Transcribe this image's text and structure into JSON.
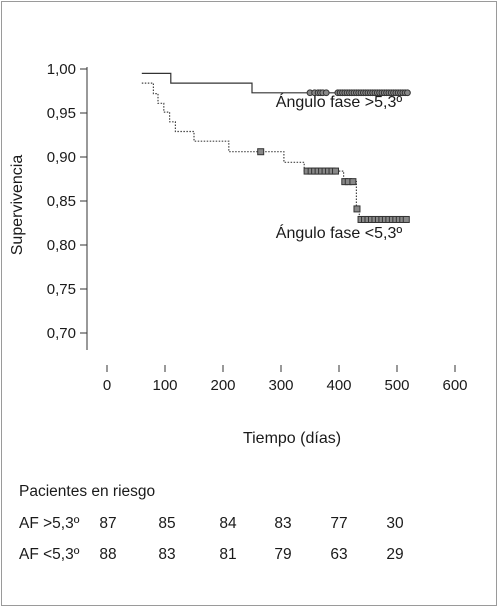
{
  "chart_data": {
    "type": "line",
    "title": "",
    "xlabel": "Tiempo (días)",
    "ylabel": "Supervivencia",
    "xlim": [
      0,
      600
    ],
    "ylim": [
      0.7,
      1.0
    ],
    "x_ticks": [
      0,
      100,
      200,
      300,
      400,
      500,
      600
    ],
    "y_ticks": [
      1.0,
      0.95,
      0.9,
      0.85,
      0.8,
      0.75,
      0.7
    ],
    "x_tick_labels": [
      "0",
      "100",
      "200",
      "300",
      "400",
      "500",
      "600"
    ],
    "y_tick_labels": [
      "1,00",
      "0,95",
      "0,90",
      "0,85",
      "0,80",
      "0,75",
      "0,70"
    ],
    "grid": false,
    "series": [
      {
        "name": "Ángulo fase >5,3º",
        "style": "solid",
        "color": "#333333",
        "steps": [
          [
            60,
            0.995
          ],
          [
            110,
            0.995
          ],
          [
            110,
            0.984
          ],
          [
            250,
            0.984
          ],
          [
            250,
            0.973
          ],
          [
            520,
            0.973
          ]
        ],
        "censored": [
          350,
          358,
          364,
          368,
          372,
          378,
          398,
          402,
          406,
          410,
          414,
          418,
          422,
          426,
          430,
          434,
          438,
          442,
          446,
          450,
          454,
          458,
          462,
          466,
          470,
          474,
          478,
          482,
          486,
          490,
          494,
          498,
          502,
          506,
          510,
          514,
          518
        ]
      },
      {
        "name": "Ángulo fase <5,3º",
        "style": "dotted",
        "color": "#444444",
        "steps": [
          [
            60,
            0.984
          ],
          [
            80,
            0.984
          ],
          [
            80,
            0.972
          ],
          [
            88,
            0.972
          ],
          [
            88,
            0.961
          ],
          [
            98,
            0.961
          ],
          [
            98,
            0.951
          ],
          [
            108,
            0.951
          ],
          [
            108,
            0.94
          ],
          [
            118,
            0.94
          ],
          [
            118,
            0.929
          ],
          [
            150,
            0.929
          ],
          [
            150,
            0.918
          ],
          [
            210,
            0.918
          ],
          [
            210,
            0.906
          ],
          [
            305,
            0.906
          ],
          [
            305,
            0.894
          ],
          [
            340,
            0.894
          ],
          [
            340,
            0.884
          ],
          [
            408,
            0.884
          ],
          [
            408,
            0.872
          ],
          [
            430,
            0.872
          ],
          [
            430,
            0.841
          ],
          [
            435,
            0.841
          ],
          [
            435,
            0.829
          ],
          [
            520,
            0.829
          ]
        ],
        "censored": [
          265,
          345,
          352,
          358,
          364,
          370,
          376,
          382,
          388,
          394,
          410,
          416,
          424,
          431,
          438,
          444,
          450,
          456,
          462,
          468,
          474,
          480,
          486,
          492,
          498,
          504,
          510,
          516
        ]
      }
    ],
    "annotations": [
      {
        "text": "Ángulo fase >5,3º",
        "x": 400,
        "y": 0.957
      },
      {
        "text": "Ángulo fase <5,3º",
        "x": 400,
        "y": 0.808
      }
    ],
    "risk_table": {
      "title": "Pacientes en riesgo",
      "rows": [
        {
          "label": "AF >5,3º",
          "values": [
            87,
            85,
            84,
            83,
            77,
            30
          ]
        },
        {
          "label": "AF <5,3º",
          "values": [
            88,
            83,
            81,
            79,
            63,
            29
          ]
        }
      ]
    }
  }
}
